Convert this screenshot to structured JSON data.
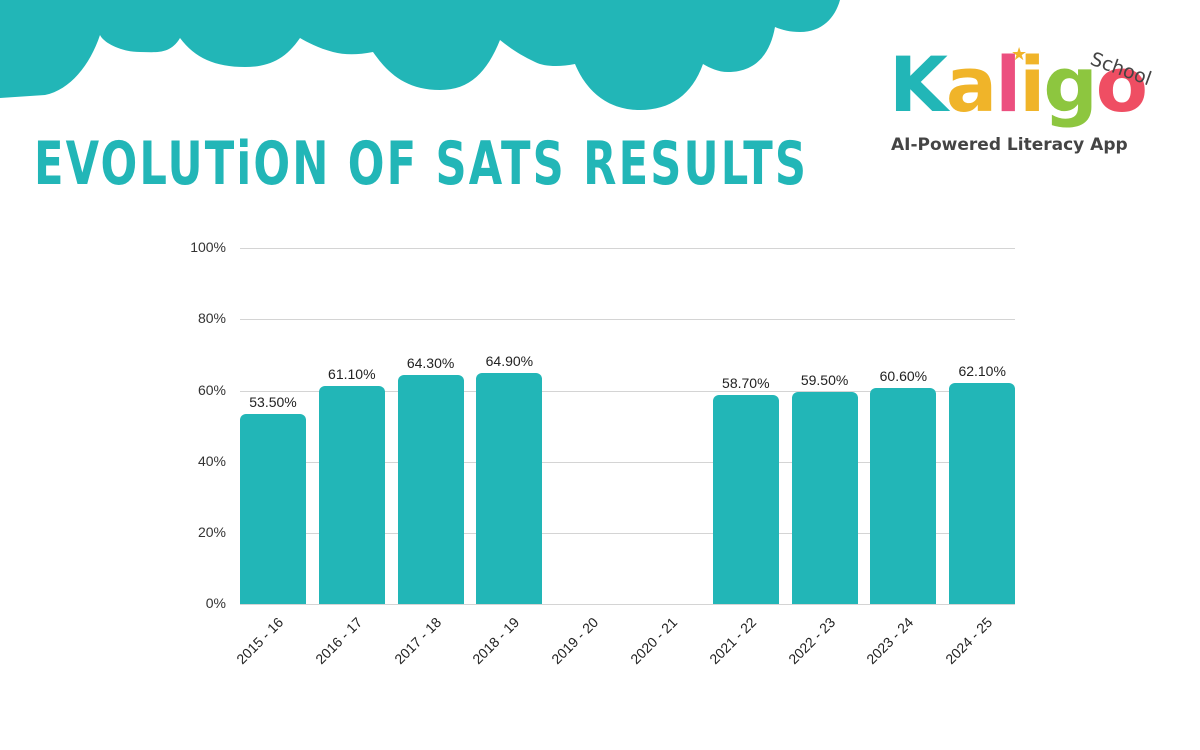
{
  "header": {
    "title": "EVOLUTiON OF SATS RESULTS"
  },
  "logo": {
    "letters": [
      {
        "char": "K",
        "color": "#22b6b7"
      },
      {
        "char": "a",
        "color": "#f0b429"
      },
      {
        "char": "l",
        "color": "#ec4f7f"
      },
      {
        "char": "i",
        "color": "#f0b429"
      },
      {
        "char": "g",
        "color": "#8dc63f"
      },
      {
        "char": "o",
        "color": "#ef4e63"
      }
    ],
    "star": "★",
    "star_color": "#f0b429",
    "school": "School",
    "tagline": "AI-Powered Literacy App"
  },
  "colors": {
    "accent": "#22b6b7",
    "gridline": "#d4d4d4",
    "background": "#ffffff"
  },
  "chart_data": {
    "type": "bar",
    "title": "EVOLUTiON OF SATS RESULTS",
    "xlabel": "",
    "ylabel": "",
    "ylim": [
      0,
      100
    ],
    "y_ticks": [
      "0%",
      "20%",
      "40%",
      "60%",
      "80%",
      "100%"
    ],
    "grid": true,
    "legend": null,
    "categories": [
      "2015 - 16",
      "2016 - 17",
      "2017 - 18",
      "2018 - 19",
      "2019 - 20",
      "2020 - 21",
      "2021 - 22",
      "2022 - 23",
      "2023 - 24",
      "2024 - 25"
    ],
    "values": [
      53.5,
      61.1,
      64.3,
      64.9,
      null,
      null,
      58.7,
      59.5,
      60.6,
      62.1
    ],
    "value_labels": [
      "53.50%",
      "61.10%",
      "64.30%",
      "64.90%",
      "",
      "",
      "58.70%",
      "59.50%",
      "60.60%",
      "62.10%"
    ],
    "bar_color": "#22b6b7"
  }
}
